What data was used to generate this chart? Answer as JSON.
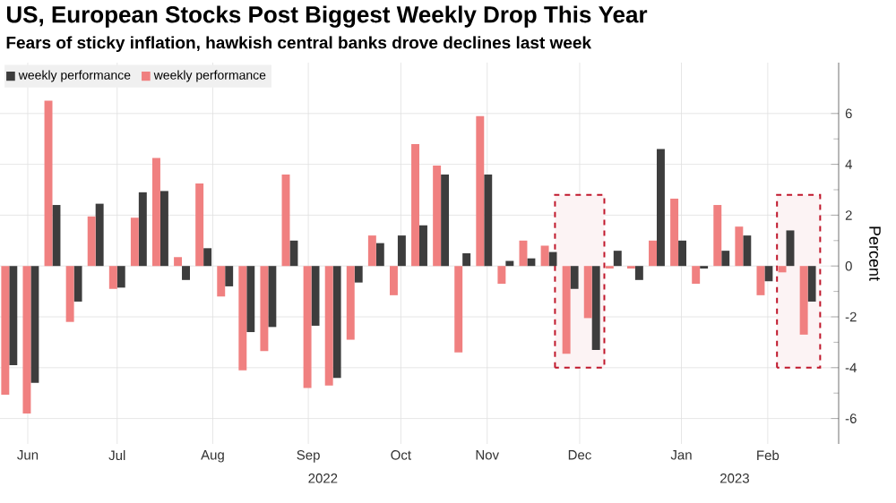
{
  "chart_data": {
    "type": "bar",
    "title": "US, European Stocks Post Biggest Weekly Drop This Year",
    "subtitle": "Fears of sticky inflation, hawkish central banks drove declines last week",
    "ylabel": "Percent",
    "x": [
      "2022-06-10",
      "2022-06-17",
      "2022-06-24",
      "2022-07-01",
      "2022-07-08",
      "2022-07-15",
      "2022-07-22",
      "2022-07-29",
      "2022-08-05",
      "2022-08-12",
      "2022-08-19",
      "2022-08-26",
      "2022-09-02",
      "2022-09-09",
      "2022-09-16",
      "2022-09-23",
      "2022-09-30",
      "2022-10-07",
      "2022-10-14",
      "2022-10-21",
      "2022-10-28",
      "2022-11-04",
      "2022-11-11",
      "2022-11-18",
      "2022-11-25",
      "2022-12-02",
      "2022-12-09",
      "2022-12-16",
      "2022-12-23",
      "2022-12-30",
      "2023-01-06",
      "2023-01-13",
      "2023-01-20",
      "2023-01-27",
      "2023-02-03",
      "2023-02-10",
      "2023-02-17",
      "2023-02-24"
    ],
    "series": [
      {
        "name": "weekly performance",
        "color": "#3d3d3d",
        "values": [
          -3.9,
          -4.6,
          2.4,
          -1.4,
          2.45,
          -0.85,
          2.9,
          2.95,
          -0.55,
          0.7,
          -0.8,
          -2.6,
          -2.4,
          1.0,
          -2.35,
          -4.4,
          -0.65,
          0.9,
          1.2,
          1.6,
          3.6,
          0.5,
          3.6,
          0.2,
          0.3,
          0.55,
          -0.9,
          -3.3,
          0.6,
          -0.55,
          4.6,
          1.0,
          -0.1,
          0.6,
          1.2,
          -0.6,
          1.4,
          -1.4
        ]
      },
      {
        "name": "weekly performance",
        "color": "#f08080",
        "values": [
          -5.06,
          -5.8,
          6.5,
          -2.2,
          1.95,
          -0.9,
          1.9,
          4.25,
          0.35,
          3.25,
          -1.2,
          -4.1,
          -3.35,
          3.6,
          -4.8,
          -4.7,
          -2.9,
          1.2,
          -1.15,
          4.8,
          3.95,
          -3.4,
          5.9,
          -0.7,
          1.0,
          0.8,
          -3.45,
          -2.05,
          -0.1,
          -0.1,
          1.0,
          2.65,
          -0.7,
          2.4,
          1.55,
          -1.15,
          -0.25,
          -2.7
        ]
      }
    ],
    "xlim": [
      "2022-06-07",
      "2023-03-06"
    ],
    "xticks": [
      {
        "value": "2022-06-16",
        "label": "Jun"
      },
      {
        "value": "2022-07-15",
        "label": "Jul"
      },
      {
        "value": "2022-08-15",
        "label": "Aug"
      },
      {
        "value": "2022-09-15",
        "label": "Sep"
      },
      {
        "value": "2022-10-15",
        "label": "Oct"
      },
      {
        "value": "2022-11-12",
        "label": "Nov"
      },
      {
        "value": "2022-12-12",
        "label": "Dec"
      },
      {
        "value": "2023-01-14",
        "label": "Jan"
      },
      {
        "value": "2023-02-11",
        "label": "Feb"
      }
    ],
    "ylim": [
      -7,
      8
    ],
    "yticks": [
      -6,
      -4,
      -2,
      0,
      2,
      4,
      6
    ],
    "grid": true,
    "legend": "top left",
    "bands": [
      {
        "axis": "x",
        "from": "2022-12-04",
        "to": "2022-12-20",
        "color": "#c0172b"
      },
      {
        "axis": "x",
        "from": "2023-02-14",
        "to": "2023-02-28",
        "color": "#c0172b"
      }
    ],
    "annotations": [
      "2022",
      "2023"
    ]
  }
}
